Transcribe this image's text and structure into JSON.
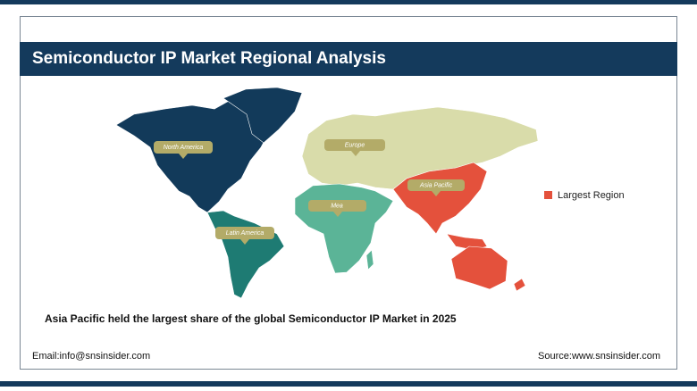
{
  "header": {
    "title": "Semiconductor IP Market Regional Analysis"
  },
  "map": {
    "regions": [
      {
        "label": "North America"
      },
      {
        "label": "Europe"
      },
      {
        "label": "Asia Pacific"
      },
      {
        "label": "Mea"
      },
      {
        "label": "Latin America"
      }
    ]
  },
  "legend": {
    "label": "Largest Region"
  },
  "caption": "Asia Pacific held the largest share of the global Semiconductor IP Market in 2025",
  "footer": {
    "email": "Email:info@snsinsider.com",
    "source": "Source:www.snsinsider.com"
  }
}
